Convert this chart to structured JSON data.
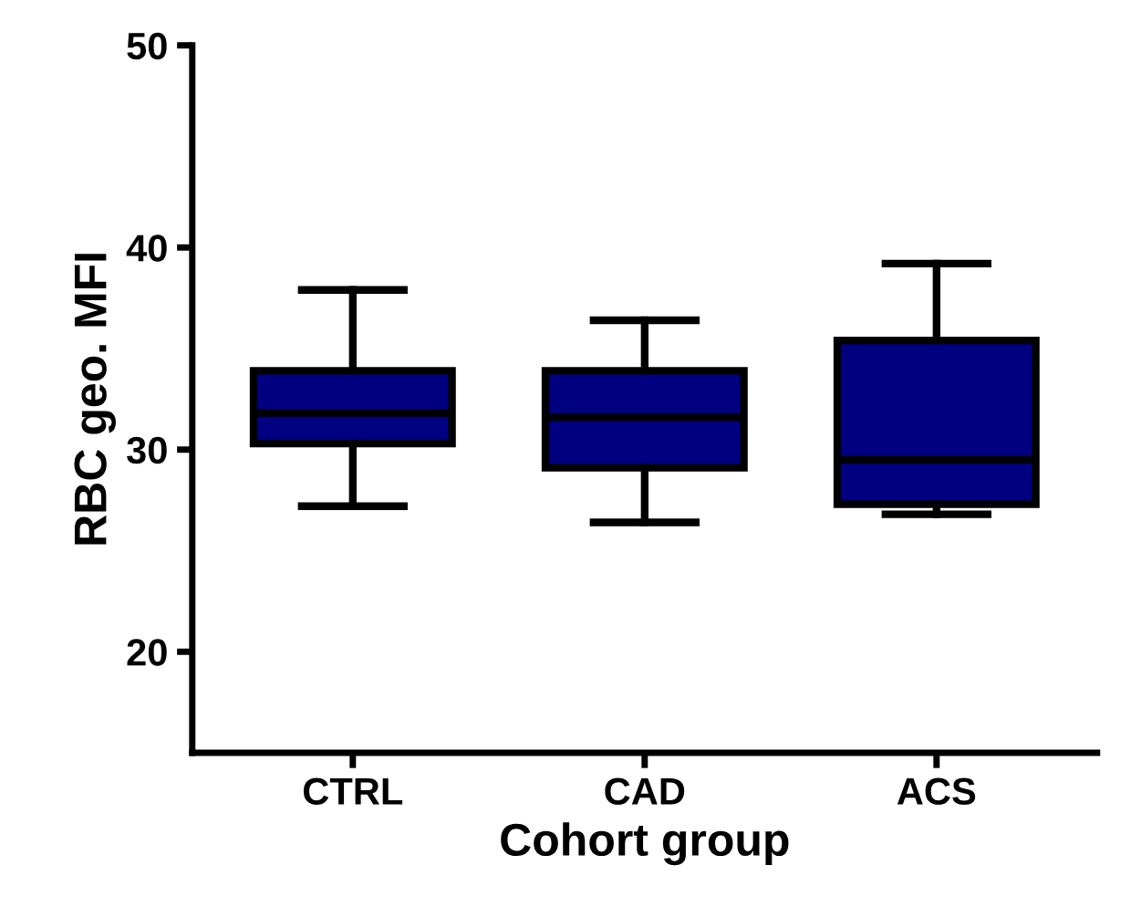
{
  "chart_data": {
    "type": "box",
    "xlabel": "Cohort group",
    "ylabel": "RBC geo. MFI",
    "categories": [
      "CTRL",
      "CAD",
      "ACS"
    ],
    "series": [
      {
        "color": "#000080",
        "boxes": [
          {
            "low": 27.2,
            "q1": 30.3,
            "median": 31.8,
            "q3": 33.9,
            "high": 37.9
          },
          {
            "low": 26.4,
            "q1": 29.1,
            "median": 31.6,
            "q3": 33.9,
            "high": 36.4
          },
          {
            "low": 26.8,
            "q1": 27.3,
            "median": 29.5,
            "q3": 35.4,
            "high": 39.2
          }
        ]
      }
    ],
    "ylim": [
      15,
      50
    ],
    "yticks": [
      20,
      30,
      40,
      50
    ],
    "grid": false,
    "legend": false
  }
}
